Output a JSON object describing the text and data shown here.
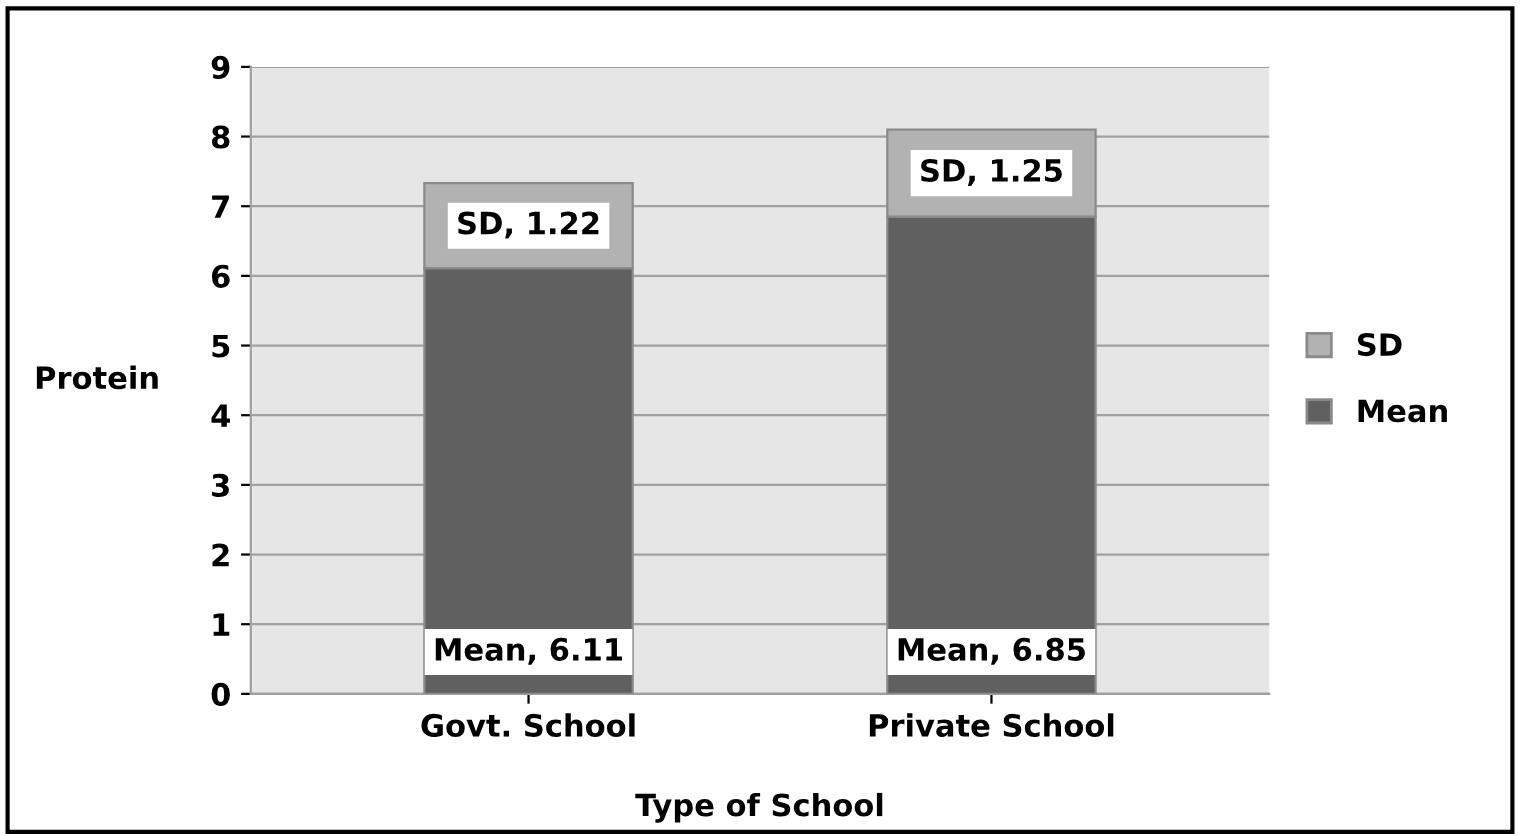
{
  "chart_data": {
    "type": "bar",
    "stacked": true,
    "xlabel": "Type of School",
    "ylabel": "Protein",
    "categories": [
      "Govt. School",
      "Private School"
    ],
    "series": [
      {
        "name": "Mean",
        "color": "#606060",
        "values": [
          6.11,
          6.85
        ],
        "value_labels": [
          "Mean, 6.11",
          "Mean, 6.85"
        ]
      },
      {
        "name": "SD",
        "color": "#b2b2b2",
        "values": [
          1.22,
          1.25
        ],
        "value_labels": [
          "SD, 1.22",
          "SD, 1.25"
        ]
      }
    ],
    "ylim": [
      0,
      9
    ],
    "yticks": [
      0,
      1,
      2,
      3,
      4,
      5,
      6,
      7,
      8,
      9
    ],
    "grid": "y",
    "legend": "right"
  }
}
